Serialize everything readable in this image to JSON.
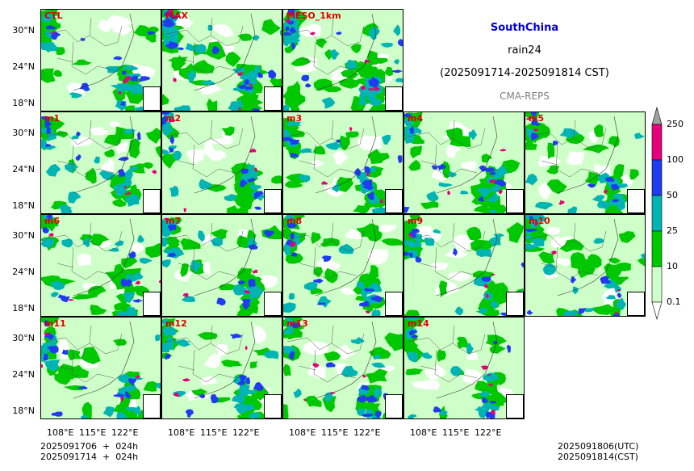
{
  "title": {
    "region": "SouthChina",
    "variable": "rain24",
    "period": "(2025091714-2025091814 CST)",
    "model": "CMA-REPS"
  },
  "panels": [
    "CTL",
    "MAX",
    "MESO_1km",
    "m1",
    "m2",
    "m3",
    "m4",
    "m5",
    "m6",
    "m7",
    "m8",
    "m9",
    "m10",
    "m11",
    "m12",
    "m13",
    "m14"
  ],
  "axes": {
    "y_ticks": [
      "30°N",
      "24°N",
      "18°N"
    ],
    "x_ticks": [
      "108°E",
      "115°E",
      "122°E"
    ]
  },
  "colorbar": {
    "levels": [
      "0.1",
      "10",
      "25",
      "50",
      "100",
      "250"
    ],
    "colors": [
      "#cfffc8",
      "#00c800",
      "#00b4b4",
      "#1f3cf0",
      "#e6007a"
    ],
    "extend_min_color": "#ffffff",
    "extend_max_color": "#a0a0a0"
  },
  "footer": {
    "left_line1": "2025091706  +  024h",
    "left_line2": "2025091714  +  024h",
    "right_line1": "2025091806(UTC)",
    "right_line2": "2025091814(CST)"
  }
}
